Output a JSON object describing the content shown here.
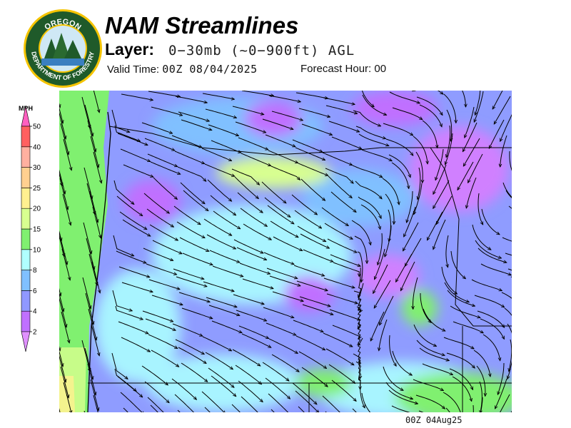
{
  "logo": {
    "top_text": "OREGON",
    "bottom_text": "DEPARTMENT OF FORESTRY"
  },
  "header": {
    "title": "NAM Streamlines",
    "layer_label": "Layer:",
    "layer_value": "0−30mb (~0−900ft) AGL",
    "valid_label": "Valid Time:",
    "valid_value": "00Z 08/04/2025",
    "forecast_label": "Forecast Hour:",
    "forecast_value": "00"
  },
  "legend": {
    "unit": "MPH",
    "levels": [
      {
        "label": "2",
        "color": "#c070ff"
      },
      {
        "label": "4",
        "color": "#9098ff"
      },
      {
        "label": "6",
        "color": "#80c0ff"
      },
      {
        "label": "8",
        "color": "#b0ffff"
      },
      {
        "label": "10",
        "color": "#80f070"
      },
      {
        "label": "15",
        "color": "#d8ff90"
      },
      {
        "label": "20",
        "color": "#fff090"
      },
      {
        "label": "25",
        "color": "#ffd090"
      },
      {
        "label": "30",
        "color": "#ffb0a0"
      },
      {
        "label": "40",
        "color": "#ff6060"
      },
      {
        "label": "50",
        "color": "#ff60c0"
      }
    ],
    "below_color": "#e090ff"
  },
  "footer": {
    "timestamp": "00Z 04Aug25"
  }
}
